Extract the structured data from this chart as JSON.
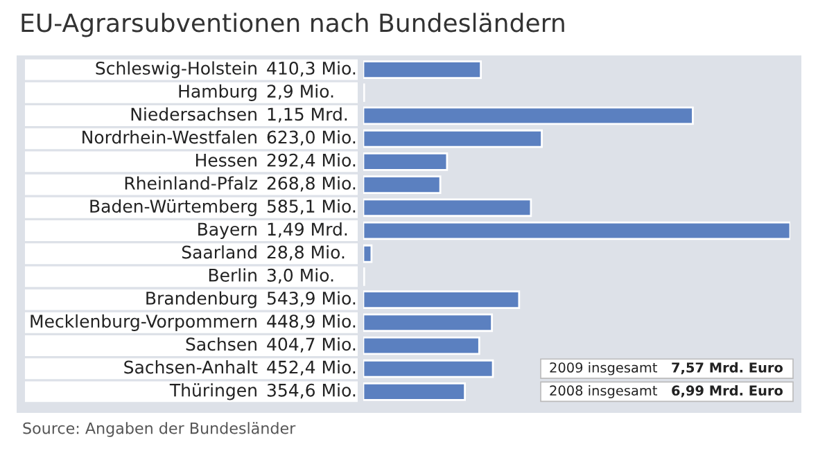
{
  "chart_data": {
    "type": "bar",
    "orientation": "horizontal",
    "title": "EU-Agrarsubventionen nach Bundesländern",
    "categories": [
      "Schleswig-Holstein",
      "Hamburg",
      "Niedersachsen",
      "Nordrhein-Westfalen",
      "Hessen",
      "Rheinland-Pfalz",
      "Baden-Würtemberg",
      "Bayern",
      "Saarland",
      "Berlin",
      "Brandenburg",
      "Mecklenburg-Vorpommern",
      "Sachsen",
      "Sachsen-Anhalt",
      "Thüringen"
    ],
    "values": [
      410.3,
      2.9,
      1150,
      623.0,
      292.4,
      268.8,
      585.1,
      1490,
      28.8,
      3.0,
      543.9,
      448.9,
      404.7,
      452.4,
      354.6
    ],
    "value_labels": [
      "410,3 Mio.",
      "2,9 Mio.",
      null,
      "623,0 Mio.",
      "292,4 Mio.",
      "268,8 Mio.",
      "585,1 Mio.",
      null,
      "28,8 Mio.",
      "3,0 Mio.",
      "543,9 Mio.",
      "448,9 Mio.",
      "404,7 Mio.",
      "452,4 Mio.",
      "354,6 Mio."
    ],
    "color": "#5b80c0",
    "annotations": [
      "1,15 Mrd.",
      "1,49 Mrd.",
      "2009 insgesamt",
      "7,57 Mrd. Euro",
      "2008 insgesamt",
      "6,99 Mrd. Euro",
      "Source: Angaben der Bundesländer"
    ]
  }
}
